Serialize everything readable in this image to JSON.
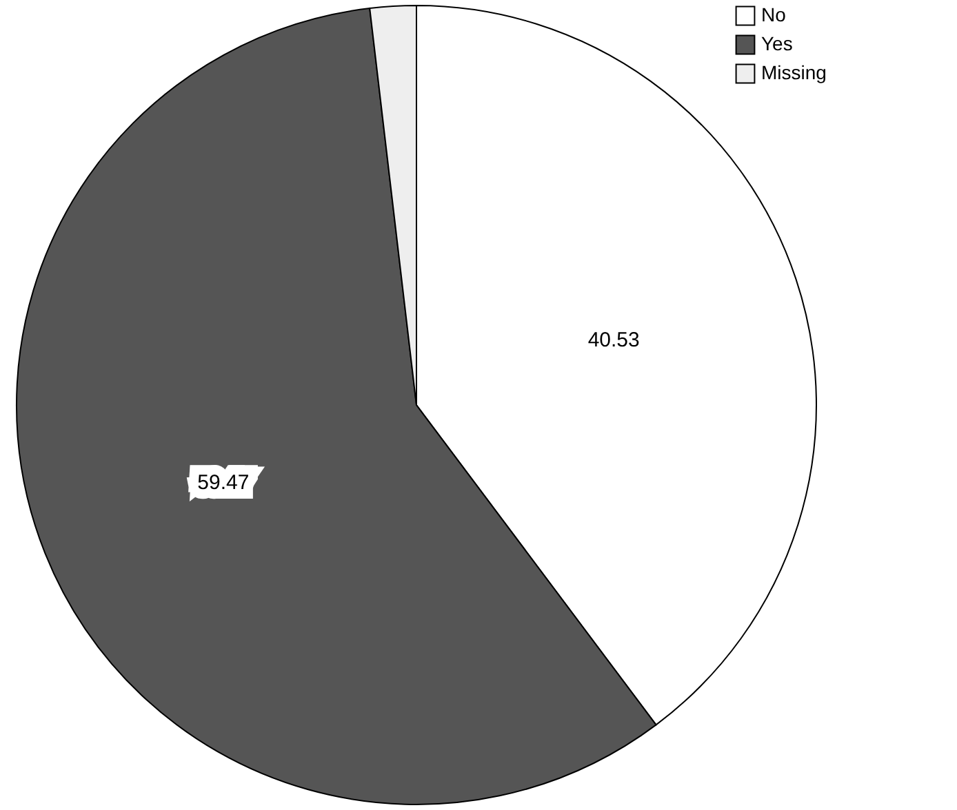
{
  "chart_data": {
    "type": "pie",
    "categories": [
      "No",
      "Yes",
      "Missing"
    ],
    "values": [
      40.53,
      59.47,
      1.9
    ],
    "value_labels": [
      "40.53",
      "59.47",
      null
    ],
    "colors": [
      "#ffffff",
      "#555555",
      "#eeeeee"
    ],
    "legend": "top right"
  }
}
